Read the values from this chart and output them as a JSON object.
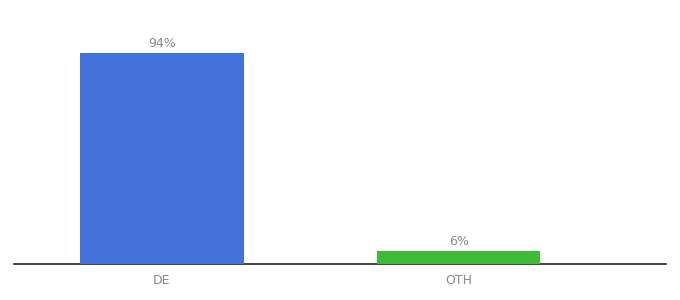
{
  "categories": [
    "DE",
    "OTH"
  ],
  "values": [
    94,
    6
  ],
  "bar_colors": [
    "#4472db",
    "#3dbb35"
  ],
  "bar_labels": [
    "94%",
    "6%"
  ],
  "background_color": "#ffffff",
  "text_color": "#888888",
  "label_fontsize": 9,
  "tick_fontsize": 9,
  "ylim": [
    0,
    108
  ],
  "bar_width": 0.55,
  "fig_width": 6.8,
  "fig_height": 3.0,
  "xlim": [
    -0.5,
    1.7
  ]
}
